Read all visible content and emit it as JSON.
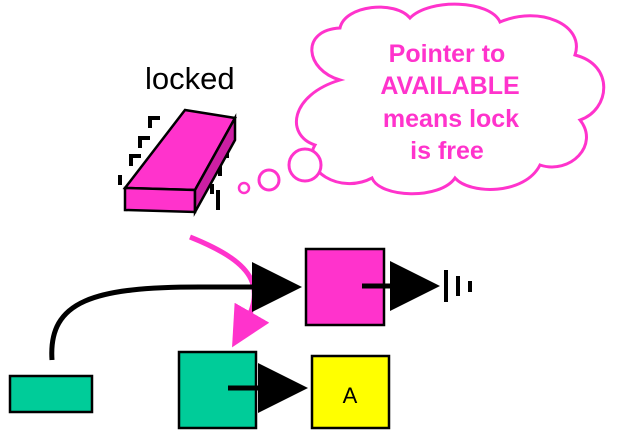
{
  "labels": {
    "locked": "locked",
    "bubble_lines": [
      "Pointer to",
      "AVAILABLE",
      "means lock",
      "is free"
    ],
    "node_label": "A"
  },
  "colors": {
    "magenta": "#ff33cc",
    "teal": "#00cc99",
    "yellow": "#ffff00",
    "stroke": "#000000",
    "bubble_text": "#ff33cc"
  },
  "icons": {
    "chip": "chip-icon",
    "ground": "null-pointer-ground-icon"
  }
}
